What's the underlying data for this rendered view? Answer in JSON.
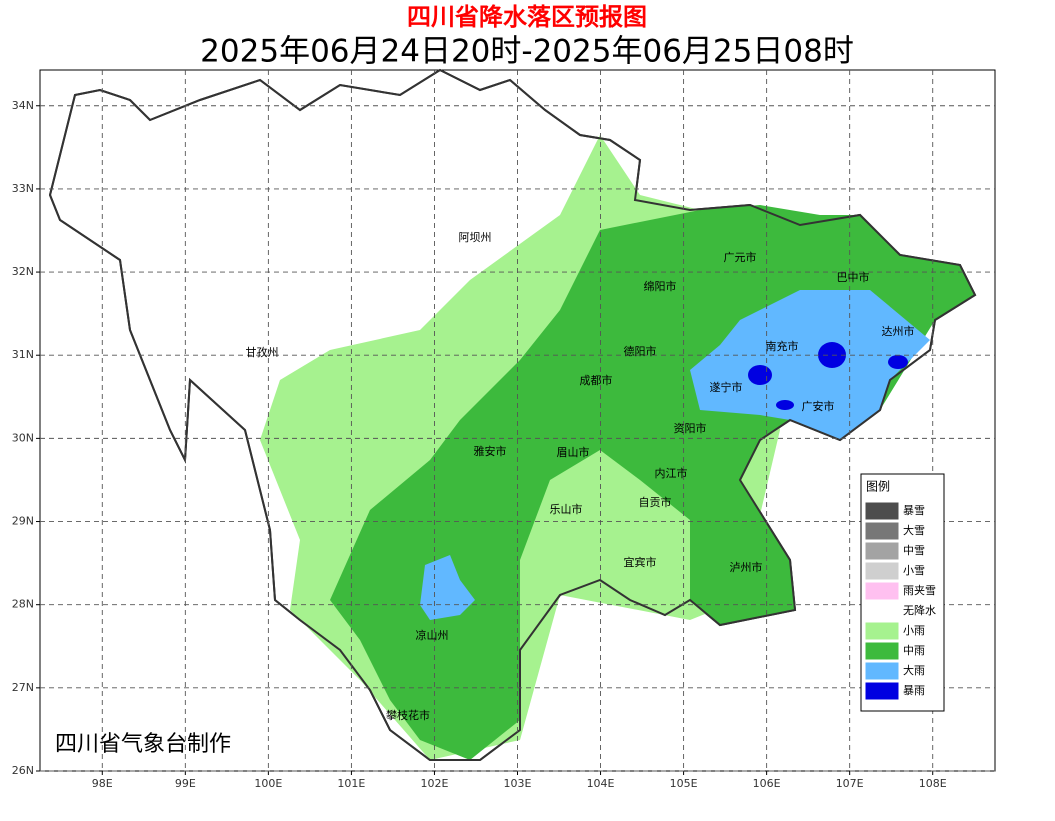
{
  "title": "四川省降水落区预报图",
  "subtitle": "2025年06月24日20时-2025年06月25日08时",
  "credit": "四川省气象台制作",
  "map": {
    "xlim": [
      97.25,
      108.75
    ],
    "ylim": [
      26,
      34.43
    ],
    "xticks": [
      {
        "value": 98,
        "label": "98E"
      },
      {
        "value": 99,
        "label": "99E"
      },
      {
        "value": 100,
        "label": "100E"
      },
      {
        "value": 101,
        "label": "101E"
      },
      {
        "value": 102,
        "label": "102E"
      },
      {
        "value": 103,
        "label": "103E"
      },
      {
        "value": 104,
        "label": "104E"
      },
      {
        "value": 105,
        "label": "105E"
      },
      {
        "value": 106,
        "label": "106E"
      },
      {
        "value": 107,
        "label": "107E"
      },
      {
        "value": 108,
        "label": "108E"
      }
    ],
    "yticks": [
      {
        "value": 26,
        "label": "26N"
      },
      {
        "value": 27,
        "label": "27N"
      },
      {
        "value": 28,
        "label": "28N"
      },
      {
        "value": 29,
        "label": "29N"
      },
      {
        "value": 30,
        "label": "30N"
      },
      {
        "value": 31,
        "label": "31N"
      },
      {
        "value": 32,
        "label": "32N"
      },
      {
        "value": 33,
        "label": "33N"
      },
      {
        "value": 34,
        "label": "34N"
      }
    ],
    "grid": true,
    "cities": [
      "阿坝州",
      "甘孜州",
      "广元市",
      "巴中市",
      "绵阳市",
      "南充市",
      "达州市",
      "德阳市",
      "遂宁市",
      "广安市",
      "成都市",
      "资阳市",
      "雅安市",
      "眉山市",
      "内江市",
      "乐山市",
      "自贡市",
      "宜宾市",
      "泸州市",
      "凉山州",
      "攀枝花市"
    ]
  },
  "legend": {
    "title": "图例",
    "items": [
      {
        "label": "暴雪",
        "color": "#4d4d4d"
      },
      {
        "label": "大雪",
        "color": "#777777"
      },
      {
        "label": "中雪",
        "color": "#a3a3a3"
      },
      {
        "label": "小雪",
        "color": "#cfcfcf"
      },
      {
        "label": "雨夹雪",
        "color": "#ffc0f0"
      },
      {
        "label": "无降水",
        "color": "#ffffff"
      },
      {
        "label": "小雨",
        "color": "#a6f28f"
      },
      {
        "label": "中雨",
        "color": "#3dba3d"
      },
      {
        "label": "大雨",
        "color": "#61b8ff"
      },
      {
        "label": "暴雨",
        "color": "#0000e1"
      }
    ]
  }
}
